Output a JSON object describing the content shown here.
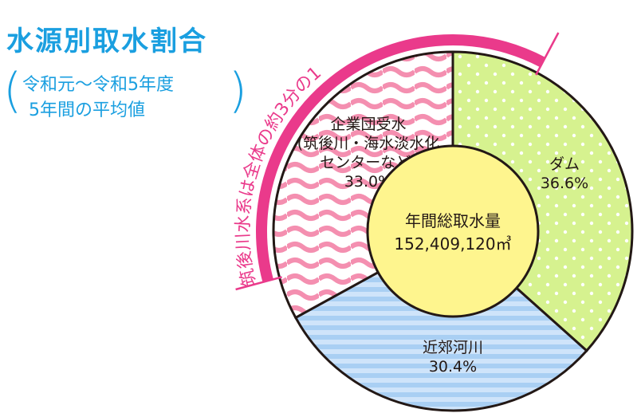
{
  "title": "水源別取水割合",
  "period": {
    "line1": "令和元〜令和5年度",
    "line2": "5年間の平均値"
  },
  "arc_label": "筑後川水系は全体の約3分の1",
  "center": {
    "label": "年間総取水量",
    "value": "152,409,120㎥"
  },
  "colors": {
    "accent": "#1a9fe0",
    "arc": "#ea3a8b"
  },
  "chart_data": {
    "type": "pie",
    "title": "水源別取水割合",
    "series": [
      {
        "name": "ダム",
        "value": 36.6,
        "label_lines": [
          "ダム"
        ],
        "value_text": "36.6%",
        "color": "#d6f28f",
        "pattern": "dots"
      },
      {
        "name": "近郊河川",
        "value": 30.4,
        "label_lines": [
          "近郊河川"
        ],
        "value_text": "30.4%",
        "color": "#b9d8f6",
        "pattern": "stripes"
      },
      {
        "name": "企業団受水",
        "value": 33.0,
        "label_lines": [
          "企業団受水",
          "(筑後川・海水淡水化",
          "センターなど)"
        ],
        "value_text": "33.0%",
        "color": "#f6a9bf",
        "pattern": "waves"
      }
    ],
    "center_total": "152,409,120㎥"
  }
}
